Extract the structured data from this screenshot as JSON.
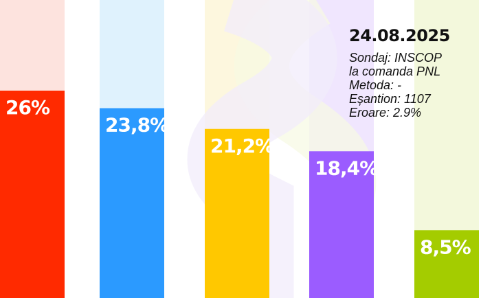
{
  "chart_data": {
    "type": "bar",
    "categories": [
      "",
      "",
      "",
      "",
      ""
    ],
    "values": [
      26,
      23.8,
      21.2,
      18.4,
      8.5
    ],
    "value_labels": [
      "26%",
      "23,8%",
      "21,2%",
      "18,4%",
      "8,5%"
    ],
    "colors": [
      "#ff2a00",
      "#2b9aff",
      "#ffc800",
      "#9b5cff",
      "#a4cc00"
    ],
    "track_colors": [
      "#fde3de",
      "#dff2fd",
      "#fdf7de",
      "#f0e6fe",
      "#f3f8dc"
    ],
    "ylim": [
      0,
      30
    ],
    "title": "",
    "xlabel": "",
    "ylabel": "",
    "grid": false,
    "legend": "none"
  },
  "info": {
    "date": "24.08.2025",
    "lines": [
      "Sondaj: INSCOP",
      "la comanda PNL",
      "Metoda: -",
      "Eșantion: 1107",
      "Eroare: 2.9%"
    ]
  }
}
